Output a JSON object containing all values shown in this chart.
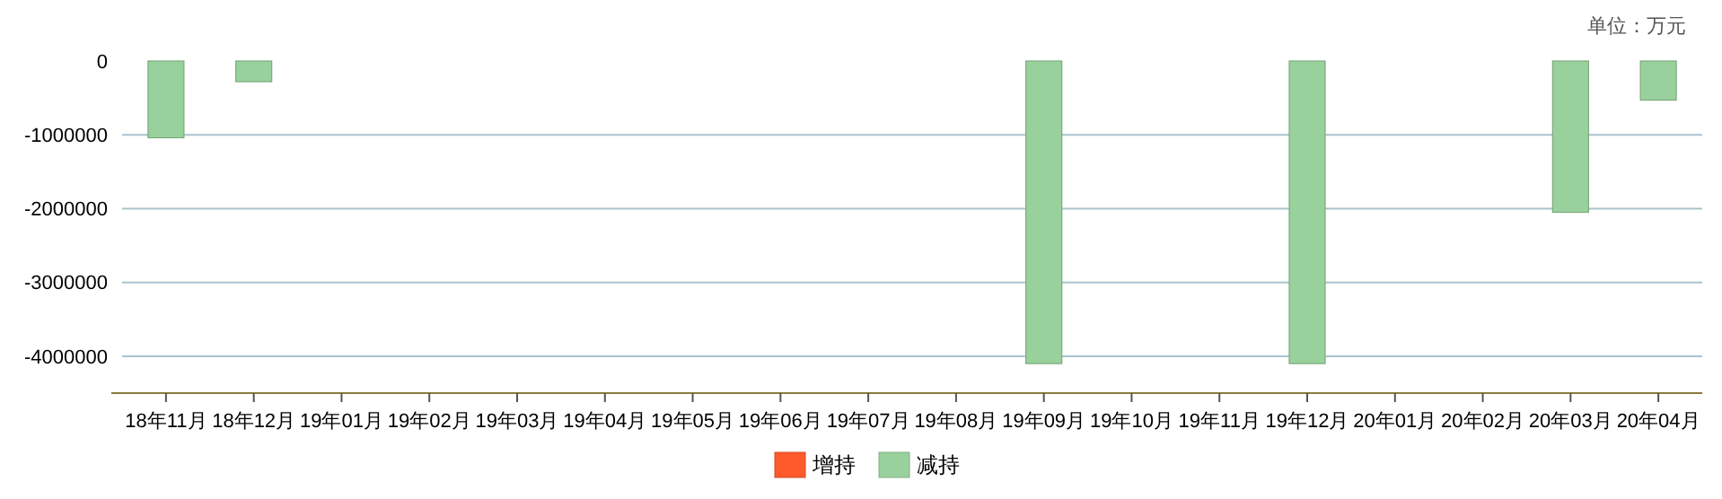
{
  "chart_data": {
    "type": "bar",
    "categories": [
      "18年11月",
      "18年12月",
      "19年01月",
      "19年02月",
      "19年03月",
      "19年04月",
      "19年05月",
      "19年06月",
      "19年07月",
      "19年08月",
      "19年09月",
      "19年10月",
      "19年11月",
      "19年12月",
      "20年01月",
      "20年02月",
      "20年03月",
      "20年04月"
    ],
    "series": [
      {
        "name": "增持",
        "color": "#ff5a2c",
        "values": [
          null,
          null,
          null,
          null,
          null,
          null,
          null,
          null,
          null,
          null,
          null,
          null,
          null,
          null,
          null,
          null,
          null,
          null
        ]
      },
      {
        "name": "减持",
        "color": "#99d19c",
        "values": [
          -1040000,
          -280000,
          null,
          null,
          null,
          null,
          null,
          null,
          null,
          null,
          -4100000,
          null,
          null,
          -4100000,
          null,
          null,
          -2050000,
          -530000
        ]
      }
    ],
    "ylim": [
      -4500000,
      0
    ],
    "yticks": [
      0,
      -1000000,
      -2000000,
      -3000000,
      -4000000
    ],
    "grid": "y",
    "legend": "bottom",
    "annotations": [
      "单位：万元"
    ]
  }
}
